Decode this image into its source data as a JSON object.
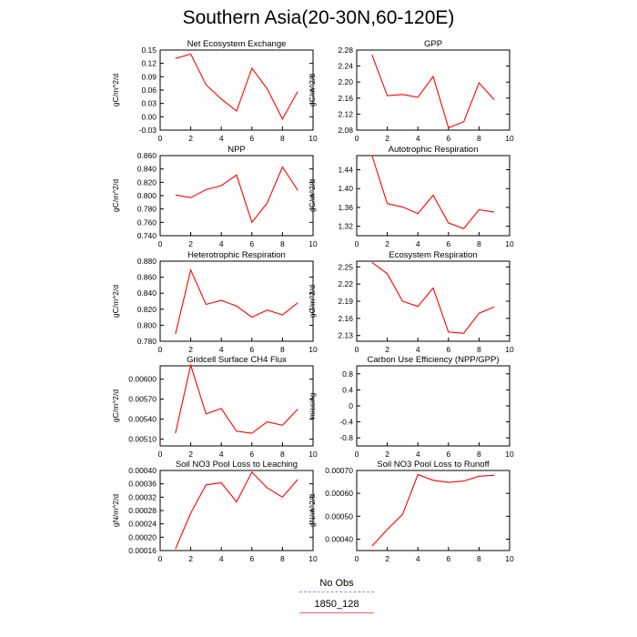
{
  "title": "Southern Asia(20-30N,60-120E)",
  "legend": {
    "items": [
      {
        "label": "No Obs",
        "color": "#8c8cff",
        "style": "dashed"
      },
      {
        "label": "1850_128",
        "color": "#ff6060",
        "style": "solid"
      }
    ]
  },
  "chart_data": [
    {
      "type": "line",
      "title": "Net Ecosystem Exchange",
      "ylabel": "gC/m^2/d",
      "xlim": [
        0,
        10
      ],
      "xticks": [
        "0",
        "2",
        "4",
        "6",
        "8",
        "10"
      ],
      "ylim": [
        -0.03,
        0.15
      ],
      "yticks": [
        "-0.03",
        "0.00",
        "0.03",
        "0.06",
        "0.09",
        "0.12",
        "0.15"
      ],
      "series": [
        {
          "name": "1850_128",
          "color": "#ff0000",
          "x": [
            1,
            2,
            3,
            4,
            5,
            6,
            7,
            8,
            9
          ],
          "y": [
            0.131,
            0.141,
            0.072,
            0.04,
            0.013,
            0.109,
            0.063,
            -0.005,
            0.057
          ]
        }
      ]
    },
    {
      "type": "line",
      "title": "GPP",
      "ylabel": "gC/m^2/d",
      "xlim": [
        0,
        10
      ],
      "xticks": [
        "0",
        "2",
        "4",
        "6",
        "8",
        "10"
      ],
      "ylim": [
        2.08,
        2.28
      ],
      "yticks": [
        "2.08",
        "2.12",
        "2.16",
        "2.20",
        "2.24",
        "2.28"
      ],
      "series": [
        {
          "name": "1850_128",
          "color": "#ff0000",
          "x": [
            1,
            2,
            3,
            4,
            5,
            6,
            7,
            8,
            9
          ],
          "y": [
            2.268,
            2.166,
            2.169,
            2.162,
            2.214,
            2.086,
            2.101,
            2.198,
            2.156
          ]
        }
      ]
    },
    {
      "type": "line",
      "title": "NPP",
      "ylabel": "gC/m^2/d",
      "xlim": [
        0,
        10
      ],
      "xticks": [
        "0",
        "2",
        "4",
        "6",
        "8",
        "10"
      ],
      "ylim": [
        0.74,
        0.86
      ],
      "yticks": [
        "0.740",
        "0.760",
        "0.780",
        "0.800",
        "0.820",
        "0.840",
        "0.860"
      ],
      "series": [
        {
          "name": "1850_128",
          "color": "#ff0000",
          "x": [
            1,
            2,
            3,
            4,
            5,
            6,
            7,
            8,
            9
          ],
          "y": [
            0.801,
            0.797,
            0.809,
            0.815,
            0.831,
            0.76,
            0.789,
            0.843,
            0.808
          ]
        }
      ]
    },
    {
      "type": "line",
      "title": "Autotrophic Respiration",
      "ylabel": "gC/m^2/d",
      "xlim": [
        0,
        10
      ],
      "xticks": [
        "0",
        "2",
        "4",
        "6",
        "8",
        "10"
      ],
      "ylim": [
        1.3,
        1.47
      ],
      "yticks": [
        "1.32",
        "1.36",
        "1.40",
        "1.44"
      ],
      "series": [
        {
          "name": "1850_128",
          "color": "#ff0000",
          "x": [
            1,
            2,
            3,
            4,
            5,
            6,
            7,
            8,
            9
          ],
          "y": [
            1.47,
            1.368,
            1.361,
            1.347,
            1.386,
            1.327,
            1.315,
            1.355,
            1.35
          ]
        }
      ]
    },
    {
      "type": "line",
      "title": "Heterotrophic Respiration",
      "ylabel": "gC/m^2/d",
      "xlim": [
        0,
        10
      ],
      "xticks": [
        "0",
        "2",
        "4",
        "6",
        "8",
        "10"
      ],
      "ylim": [
        0.78,
        0.88
      ],
      "yticks": [
        "0.780",
        "0.800",
        "0.820",
        "0.840",
        "0.860",
        "0.880"
      ],
      "series": [
        {
          "name": "1850_128",
          "color": "#ff0000",
          "x": [
            1,
            2,
            3,
            4,
            5,
            6,
            7,
            8,
            9
          ],
          "y": [
            0.789,
            0.869,
            0.826,
            0.831,
            0.824,
            0.81,
            0.819,
            0.813,
            0.828
          ]
        }
      ]
    },
    {
      "type": "line",
      "title": "Ecosystem Respiration",
      "ylabel": "gC/m^2/d",
      "xlim": [
        0,
        10
      ],
      "xticks": [
        "0",
        "2",
        "4",
        "6",
        "8",
        "10"
      ],
      "ylim": [
        2.12,
        2.26
      ],
      "yticks": [
        "2.13",
        "2.16",
        "2.19",
        "2.22",
        "2.25"
      ],
      "series": [
        {
          "name": "1850_128",
          "color": "#ff0000",
          "x": [
            1,
            2,
            3,
            4,
            5,
            6,
            7,
            8,
            9
          ],
          "y": [
            2.258,
            2.238,
            2.19,
            2.181,
            2.213,
            2.136,
            2.134,
            2.169,
            2.18
          ]
        }
      ]
    },
    {
      "type": "line",
      "title": "Gridcell Surface CH4 Flux",
      "ylabel": "gC/m^2/d",
      "xlim": [
        0,
        10
      ],
      "xticks": [
        "0",
        "2",
        "4",
        "6",
        "8",
        "10"
      ],
      "ylim": [
        0.005,
        0.0062
      ],
      "yticks": [
        "0.00510",
        "0.00540",
        "0.00570",
        "0.00600"
      ],
      "series": [
        {
          "name": "1850_128",
          "color": "#ff0000",
          "x": [
            1,
            2,
            3,
            4,
            5,
            6,
            7,
            8,
            9
          ],
          "y": [
            0.00519,
            0.00621,
            0.00548,
            0.00556,
            0.00522,
            0.00519,
            0.00536,
            0.00531,
            0.00555
          ]
        }
      ]
    },
    {
      "type": "line",
      "title": "Carbon Use Efficiency (NPP/GPP)",
      "ylabel": "missing",
      "xlim": [
        0,
        10
      ],
      "xticks": [
        "0",
        "2",
        "4",
        "6",
        "8",
        "10"
      ],
      "ylim": [
        -1.0,
        1.0
      ],
      "yticks": [
        "-0.8",
        "-0.4",
        "0",
        "0.4",
        "0.8"
      ],
      "series": []
    },
    {
      "type": "line",
      "title": "Soil NO3 Pool Loss to Leaching",
      "ylabel": "gN/m^2/d",
      "xlim": [
        0,
        10
      ],
      "xticks": [
        "0",
        "2",
        "4",
        "6",
        "8",
        "10"
      ],
      "ylim": [
        0.00016,
        0.0004
      ],
      "yticks": [
        "0.00016",
        "0.00020",
        "0.00024",
        "0.00028",
        "0.00032",
        "0.00036",
        "0.00040"
      ],
      "series": [
        {
          "name": "1850_128",
          "color": "#ff0000",
          "x": [
            1,
            2,
            3,
            4,
            5,
            6,
            7,
            8,
            9
          ],
          "y": [
            0.000165,
            0.000272,
            0.000357,
            0.000363,
            0.000306,
            0.000395,
            0.000348,
            0.00032,
            0.000373
          ]
        }
      ]
    },
    {
      "type": "line",
      "title": "Soil NO3 Pool Loss to Runoff",
      "ylabel": "gN/m^2/d",
      "xlim": [
        0,
        10
      ],
      "xticks": [
        "0",
        "2",
        "4",
        "6",
        "8",
        "10"
      ],
      "ylim": [
        0.00035,
        0.0007
      ],
      "yticks": [
        "0.00040",
        "0.00050",
        "0.00060",
        "0.00070"
      ],
      "series": [
        {
          "name": "1850_128",
          "color": "#ff0000",
          "x": [
            1,
            2,
            3,
            4,
            5,
            6,
            7,
            8,
            9
          ],
          "y": [
            0.00037,
            0.000442,
            0.000508,
            0.000682,
            0.000657,
            0.000648,
            0.000654,
            0.000675,
            0.000679
          ]
        }
      ]
    }
  ]
}
